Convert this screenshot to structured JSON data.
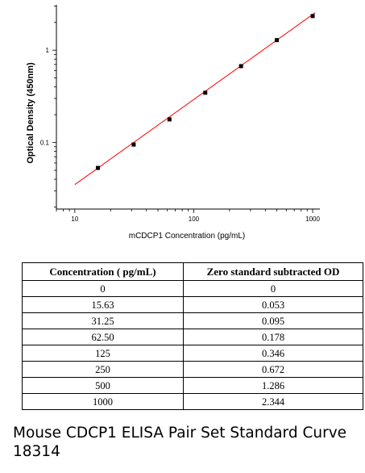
{
  "chart_data": {
    "type": "scatter",
    "title": "",
    "xlabel": "mCDCP1 Concentration (pg/mL)",
    "ylabel": "Optical Density (450nm)",
    "x_scale": "log",
    "y_scale": "log",
    "xlim": [
      7,
      1150
    ],
    "ylim": [
      0.019,
      3.1
    ],
    "x_ticks": [
      10,
      100,
      1000
    ],
    "x_tick_labels": [
      "10",
      "100",
      "1000"
    ],
    "y_ticks": [
      0.1,
      1
    ],
    "y_tick_labels": [
      "0.1",
      "1"
    ],
    "grid": false,
    "series": [
      {
        "x": [
          15.63,
          31.25,
          62.5,
          125,
          250,
          500,
          1000
        ],
        "y": [
          0.053,
          0.095,
          0.178,
          0.346,
          0.672,
          1.286,
          2.344
        ],
        "color": "#000000"
      }
    ],
    "fit_line": {
      "x": [
        10,
        1050
      ],
      "y": [
        0.035,
        2.55
      ],
      "color": "#ff0000"
    }
  },
  "table": {
    "headers": [
      "Concentration ( pg/mL)",
      "Zero standard subtracted OD"
    ],
    "rows": [
      [
        "0",
        "0"
      ],
      [
        "15.63",
        "0.053"
      ],
      [
        "31.25",
        "0.095"
      ],
      [
        "62.50",
        "0.178"
      ],
      [
        "125",
        "0.346"
      ],
      [
        "250",
        "0.672"
      ],
      [
        "500",
        "1.286"
      ],
      [
        "1000",
        "2.344"
      ]
    ]
  },
  "caption": "Mouse CDCP1 ELISA Pair Set Standard Curve\n18314"
}
